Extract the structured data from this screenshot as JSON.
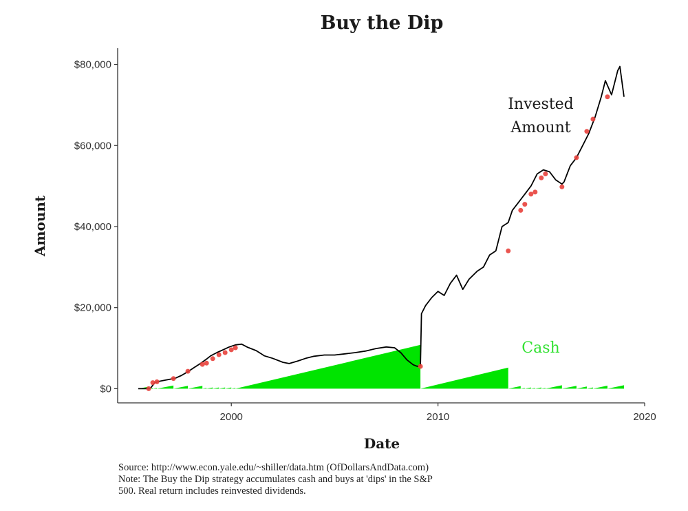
{
  "chart_data": {
    "type": "area",
    "title": "Buy the Dip",
    "xlabel": "Date",
    "ylabel": "Amount",
    "xlim": [
      1994.5,
      2020
    ],
    "ylim": [
      -3500,
      84000
    ],
    "x_ticks": [
      2000,
      2010,
      2020
    ],
    "x_tick_labels": [
      "2000",
      "2010",
      "2020"
    ],
    "y_ticks": [
      0,
      20000,
      40000,
      60000,
      80000
    ],
    "y_tick_labels": [
      "$0",
      "$20,000",
      "$40,000",
      "$60,000",
      "$80,000"
    ],
    "grid": false,
    "colors": {
      "invested": "#000000",
      "cash": "#00e400",
      "buy_points": "#e8413c",
      "invested_label": "#1a1a1a",
      "cash_label": "#33e133"
    },
    "annotations": [
      {
        "text": "Invested",
        "series": "invested"
      },
      {
        "text": "Amount",
        "series": "invested"
      },
      {
        "text": "Cash",
        "series": "cash"
      }
    ],
    "series": [
      {
        "name": "Invested Amount",
        "type": "line",
        "x": [
          1995.5,
          1996.0,
          1996.1,
          1996.3,
          1996.5,
          1996.8,
          1997.0,
          1997.3,
          1997.6,
          1997.9,
          1998.2,
          1998.5,
          1998.8,
          1999.0,
          1999.3,
          1999.6,
          1999.9,
          2000.2,
          2000.5,
          2000.8,
          2001.2,
          2001.6,
          2002.0,
          2002.5,
          2002.8,
          2003.2,
          2003.6,
          2004.0,
          2004.5,
          2005.0,
          2005.5,
          2006.0,
          2006.5,
          2007.0,
          2007.5,
          2007.9,
          2008.2,
          2008.5,
          2008.8,
          2009.0,
          2009.15,
          2009.2,
          2009.4,
          2009.7,
          2010.0,
          2010.3,
          2010.6,
          2010.9,
          2011.2,
          2011.5,
          2011.9,
          2012.2,
          2012.5,
          2012.8,
          2013.1,
          2013.4,
          2013.6,
          2013.9,
          2014.2,
          2014.5,
          2014.8,
          2015.1,
          2015.4,
          2015.7,
          2016.0,
          2016.1,
          2016.4,
          2016.7,
          2017.0,
          2017.3,
          2017.6,
          2017.9,
          2018.1,
          2018.4,
          2018.7,
          2018.8,
          2019.0
        ],
        "values": [
          0,
          0,
          200,
          1500,
          1800,
          2100,
          2300,
          2600,
          3300,
          4200,
          5200,
          6200,
          7300,
          8100,
          8900,
          9600,
          10300,
          10800,
          11000,
          10200,
          9400,
          8100,
          7500,
          6500,
          6200,
          6800,
          7500,
          8000,
          8300,
          8300,
          8600,
          8900,
          9300,
          9900,
          10300,
          10100,
          8900,
          7100,
          5900,
          5500,
          5800,
          18500,
          20500,
          22500,
          24000,
          23000,
          26000,
          28000,
          24500,
          27000,
          29000,
          30000,
          33000,
          34000,
          40000,
          41000,
          44000,
          46000,
          48000,
          50000,
          53000,
          54000,
          53500,
          51500,
          50500,
          51000,
          55000,
          57000,
          60000,
          63000,
          67000,
          72000,
          76000,
          72500,
          78500,
          79500,
          72000
        ]
      },
      {
        "name": "Buy the Dip purchases",
        "type": "scatter",
        "x": [
          1996.0,
          1996.2,
          1996.4,
          1997.2,
          1997.9,
          1998.6,
          1998.8,
          1999.1,
          1999.4,
          1999.7,
          2000.0,
          2000.2,
          2009.15,
          2013.4,
          2014.0,
          2014.2,
          2014.5,
          2014.7,
          2015.0,
          2015.2,
          2016.0,
          2016.7,
          2017.2,
          2017.5,
          2018.2
        ],
        "values": [
          0,
          1500,
          1700,
          2500,
          4300,
          6000,
          6300,
          7400,
          8400,
          8900,
          9600,
          10100,
          5500,
          34000,
          44000,
          45500,
          48000,
          48500,
          52000,
          53000,
          49800,
          57000,
          63500,
          66500,
          72000
        ]
      },
      {
        "name": "Cash",
        "type": "area",
        "x": [
          1995.5,
          1996.0,
          1996.0,
          1996.2,
          1996.2,
          1996.4,
          1996.4,
          1997.2,
          1997.2,
          1997.9,
          1997.9,
          1998.6,
          1998.6,
          1998.8,
          1998.8,
          1999.1,
          1999.1,
          1999.4,
          1999.4,
          1999.7,
          1999.7,
          2000.0,
          2000.0,
          2000.2,
          2000.2,
          2009.15,
          2009.15,
          2013.4,
          2013.4,
          2014.0,
          2014.0,
          2014.2,
          2014.2,
          2014.5,
          2014.5,
          2014.7,
          2014.7,
          2015.0,
          2015.0,
          2015.2,
          2015.2,
          2016.0,
          2016.0,
          2016.7,
          2016.7,
          2017.2,
          2017.2,
          2017.5,
          2017.5,
          2018.2,
          2018.2,
          2019.0
        ],
        "values": [
          0,
          500,
          0,
          200,
          0,
          200,
          0,
          800,
          0,
          700,
          0,
          700,
          0,
          200,
          0,
          300,
          0,
          300,
          0,
          300,
          0,
          300,
          0,
          200,
          0,
          10800,
          0,
          5200,
          0,
          650,
          0,
          200,
          0,
          300,
          0,
          200,
          0,
          300,
          0,
          200,
          0,
          850,
          0,
          700,
          0,
          550,
          0,
          300,
          0,
          750,
          0,
          850
        ]
      }
    ]
  },
  "source_note": {
    "line1": "Source:  http://www.econ.yale.edu/~shiller/data.htm (OfDollarsAndData.com)",
    "line2": "Note: The Buy the Dip strategy accumulates cash and buys at 'dips' in the S&P",
    "line3": "500. Real return includes reinvested dividends."
  }
}
